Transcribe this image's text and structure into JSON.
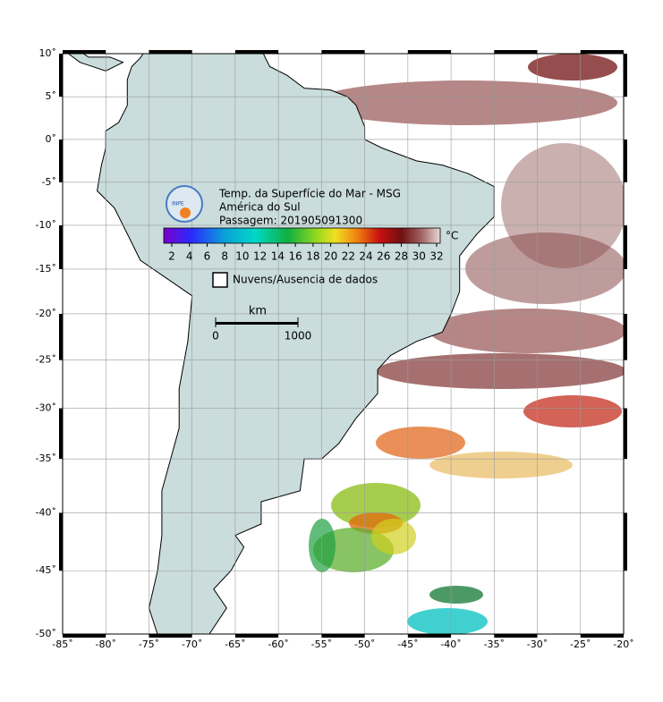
{
  "map": {
    "title_lines": [
      "Temp. da Superfície do Mar - MSG",
      "América do Sul",
      "Passagem: 201905091300"
    ],
    "logo": "INPE",
    "colorbar": {
      "unit": "°C",
      "ticks": [
        2,
        4,
        6,
        8,
        10,
        12,
        14,
        16,
        18,
        20,
        22,
        24,
        26,
        28,
        30,
        32
      ]
    },
    "legend": {
      "label": "Nuvens/Ausencia de dados"
    },
    "scale_bar": {
      "unit": "km",
      "ticks": [
        0,
        1000
      ]
    },
    "lat_ticks": [
      {
        "value": 10,
        "label": "10˚"
      },
      {
        "value": 5,
        "label": "5˚"
      },
      {
        "value": 0,
        "label": "0˚"
      },
      {
        "value": -5,
        "label": "-5˚"
      },
      {
        "value": -10,
        "label": "-10˚"
      },
      {
        "value": -15,
        "label": "-15˚"
      },
      {
        "value": -20,
        "label": "-20˚"
      },
      {
        "value": -25,
        "label": "-25˚"
      },
      {
        "value": -30,
        "label": "-30˚"
      },
      {
        "value": -35,
        "label": "-35˚"
      },
      {
        "value": -40,
        "label": "-40˚"
      },
      {
        "value": -45,
        "label": "-45˚"
      },
      {
        "value": -50,
        "label": "-50˚"
      }
    ],
    "lon_ticks": [
      {
        "value": -85,
        "label": "-85˚"
      },
      {
        "value": -80,
        "label": "-80˚"
      },
      {
        "value": -75,
        "label": "-75˚"
      },
      {
        "value": -70,
        "label": "-70˚"
      },
      {
        "value": -65,
        "label": "-65˚"
      },
      {
        "value": -60,
        "label": "-60˚"
      },
      {
        "value": -55,
        "label": "-55˚"
      },
      {
        "value": -50,
        "label": "-50˚"
      },
      {
        "value": -45,
        "label": "-45˚"
      },
      {
        "value": -40,
        "label": "-40˚"
      },
      {
        "value": -35,
        "label": "-35˚"
      },
      {
        "value": -30,
        "label": "-30˚"
      },
      {
        "value": -25,
        "label": "-25˚"
      },
      {
        "value": -20,
        "label": "-20˚"
      }
    ]
  }
}
